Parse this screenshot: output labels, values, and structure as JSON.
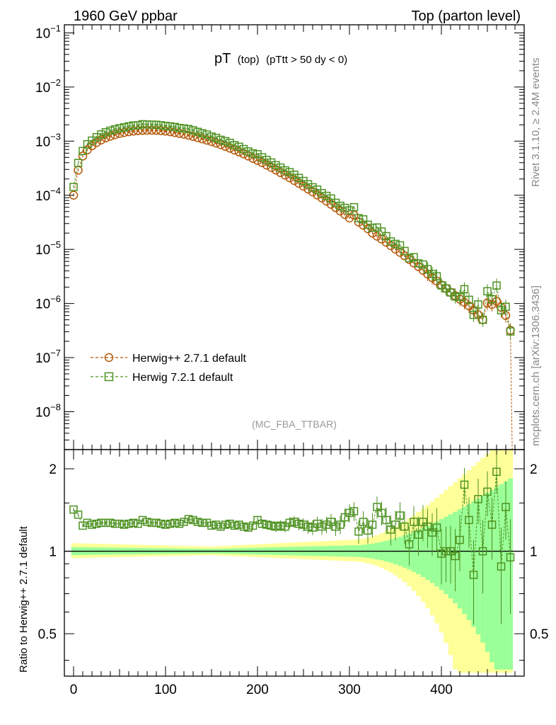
{
  "header": {
    "left": "1960 GeV ppbar",
    "right": "Top (parton level)"
  },
  "side": {
    "rivet": "Rivet 3.1.10, ≥ 2.4M events",
    "mcplots": "mcplots.cern.ch [arXiv:1306.3436]"
  },
  "chart_data": {
    "type": "scatter",
    "title_main": "pT",
    "title_sub1": "(top)",
    "title_sub2": "(pTtt > 50 dy < 0)",
    "analysis_label": "(MC_FBA_TTBAR)",
    "ratio_ylabel": "Ratio to Herwig++ 2.7.1 default",
    "xlim": [
      -10,
      490
    ],
    "ylim_main_log10": [
      -8.7,
      -0.85
    ],
    "ylim_ratio": [
      0.35,
      2.35
    ],
    "x_ticks": [
      "0",
      "100",
      "200",
      "300",
      "400"
    ],
    "y_ticks_main": [
      {
        "base": "10",
        "exp": "−1"
      },
      {
        "base": "10",
        "exp": "−2"
      },
      {
        "base": "10",
        "exp": "−3"
      },
      {
        "base": "10",
        "exp": "−4"
      },
      {
        "base": "10",
        "exp": "−5"
      },
      {
        "base": "10",
        "exp": "−6"
      },
      {
        "base": "10",
        "exp": "−7"
      },
      {
        "base": "10",
        "exp": "−8"
      }
    ],
    "y_ticks_ratio": [
      "2",
      "1",
      "0.5"
    ],
    "series": [
      {
        "name": "Herwig++ 2.7.1 default",
        "color": "#b35806",
        "marker": "circle",
        "x": [
          0,
          5,
          10,
          15,
          20,
          25,
          30,
          35,
          40,
          45,
          50,
          55,
          60,
          65,
          70,
          75,
          80,
          85,
          90,
          95,
          100,
          105,
          110,
          115,
          120,
          125,
          130,
          135,
          140,
          145,
          150,
          155,
          160,
          165,
          170,
          175,
          180,
          185,
          190,
          195,
          200,
          205,
          210,
          215,
          220,
          225,
          230,
          235,
          240,
          245,
          250,
          255,
          260,
          265,
          270,
          275,
          280,
          285,
          290,
          295,
          300,
          305,
          310,
          315,
          320,
          325,
          330,
          335,
          340,
          345,
          350,
          355,
          360,
          365,
          370,
          375,
          380,
          385,
          390,
          395,
          400,
          405,
          410,
          415,
          420,
          425,
          430,
          435,
          440,
          445,
          450,
          455,
          460,
          465,
          470,
          475
        ],
        "y": [
          0.0001,
          0.00029,
          0.00053,
          0.00069,
          0.00082,
          0.00094,
          0.00105,
          0.00115,
          0.00123,
          0.00131,
          0.00138,
          0.00144,
          0.00149,
          0.00153,
          0.00156,
          0.00158,
          0.00159,
          0.00159,
          0.00158,
          0.00156,
          0.00153,
          0.00149,
          0.00144,
          0.00139,
          0.00134,
          0.00128,
          0.00122,
          0.00116,
          0.0011,
          0.00104,
          0.00098,
          0.00092,
          0.00086,
          0.0008,
          0.00074,
          0.00068,
          0.00063,
          0.00058,
          0.00053,
          0.00048,
          0.00044,
          0.0004,
          0.00036,
          0.000325,
          0.000292,
          0.000262,
          0.000235,
          0.00021,
          0.000187,
          0.000166,
          0.000147,
          0.00013,
          0.000115,
          0.000101,
          8.9e-05,
          7.8e-05,
          6.8e-05,
          5.9e-05,
          5.1e-05,
          4.4e-05,
          3.8e-05,
          4.3e-05,
          3.2e-05,
          2.8e-05,
          2.4e-05,
          2e-05,
          1.75e-05,
          1.55e-05,
          1.35e-05,
          1.17e-05,
          1.01e-05,
          8.8e-06,
          7.6e-06,
          6.5e-06,
          5.6e-06,
          4.8e-06,
          4.1e-06,
          3.5e-06,
          3e-06,
          2.6e-06,
          2.2e-06,
          1.9e-06,
          1.6e-06,
          1.4e-06,
          1.2e-06,
          1.05e-06,
          9e-07,
          7.5e-07,
          6.2e-07,
          5e-07,
          1.02e-06,
          9.6e-07,
          1.1e-06,
          8.5e-07,
          6e-07,
          3.2e-07
        ]
      },
      {
        "name": "Herwig 7.2.1 default",
        "color": "#4d9221",
        "marker": "square",
        "x": [
          0,
          5,
          10,
          15,
          20,
          25,
          30,
          35,
          40,
          45,
          50,
          55,
          60,
          65,
          70,
          75,
          80,
          85,
          90,
          95,
          100,
          105,
          110,
          115,
          120,
          125,
          130,
          135,
          140,
          145,
          150,
          155,
          160,
          165,
          170,
          175,
          180,
          185,
          190,
          195,
          200,
          205,
          210,
          215,
          220,
          225,
          230,
          235,
          240,
          245,
          250,
          255,
          260,
          265,
          270,
          275,
          280,
          285,
          290,
          295,
          300,
          305,
          310,
          315,
          320,
          325,
          330,
          335,
          340,
          345,
          350,
          355,
          360,
          365,
          370,
          375,
          380,
          385,
          390,
          395,
          400,
          405,
          410,
          415,
          420,
          425,
          430,
          435,
          440,
          445,
          450,
          455,
          460,
          465,
          470,
          475
        ],
        "y": [
          1.42,
          1.36,
          1.24,
          1.27,
          1.25,
          1.26,
          1.27,
          1.27,
          1.27,
          1.26,
          1.26,
          1.25,
          1.26,
          1.27,
          1.26,
          1.3,
          1.28,
          1.27,
          1.27,
          1.26,
          1.25,
          1.26,
          1.27,
          1.26,
          1.28,
          1.31,
          1.3,
          1.28,
          1.27,
          1.27,
          1.24,
          1.25,
          1.23,
          1.25,
          1.26,
          1.24,
          1.25,
          1.23,
          1.22,
          1.24,
          1.3,
          1.26,
          1.25,
          1.24,
          1.23,
          1.24,
          1.23,
          1.27,
          1.28,
          1.26,
          1.25,
          1.23,
          1.22,
          1.26,
          1.23,
          1.25,
          1.28,
          1.23,
          1.25,
          1.33,
          1.38,
          1.4,
          1.18,
          1.28,
          1.19,
          1.25,
          1.45,
          1.38,
          1.3,
          1.2,
          1.25,
          1.35,
          1.23,
          1.06,
          1.28,
          1.15,
          1.28,
          1.23,
          1.17,
          1.22,
          0.98,
          1.0,
          1.0,
          0.96,
          1.1,
          1.75,
          1.3,
          0.82,
          1.55,
          1.0,
          1.65,
          1.25,
          1.95,
          0.88,
          1.45,
          0.95
        ]
      }
    ]
  }
}
